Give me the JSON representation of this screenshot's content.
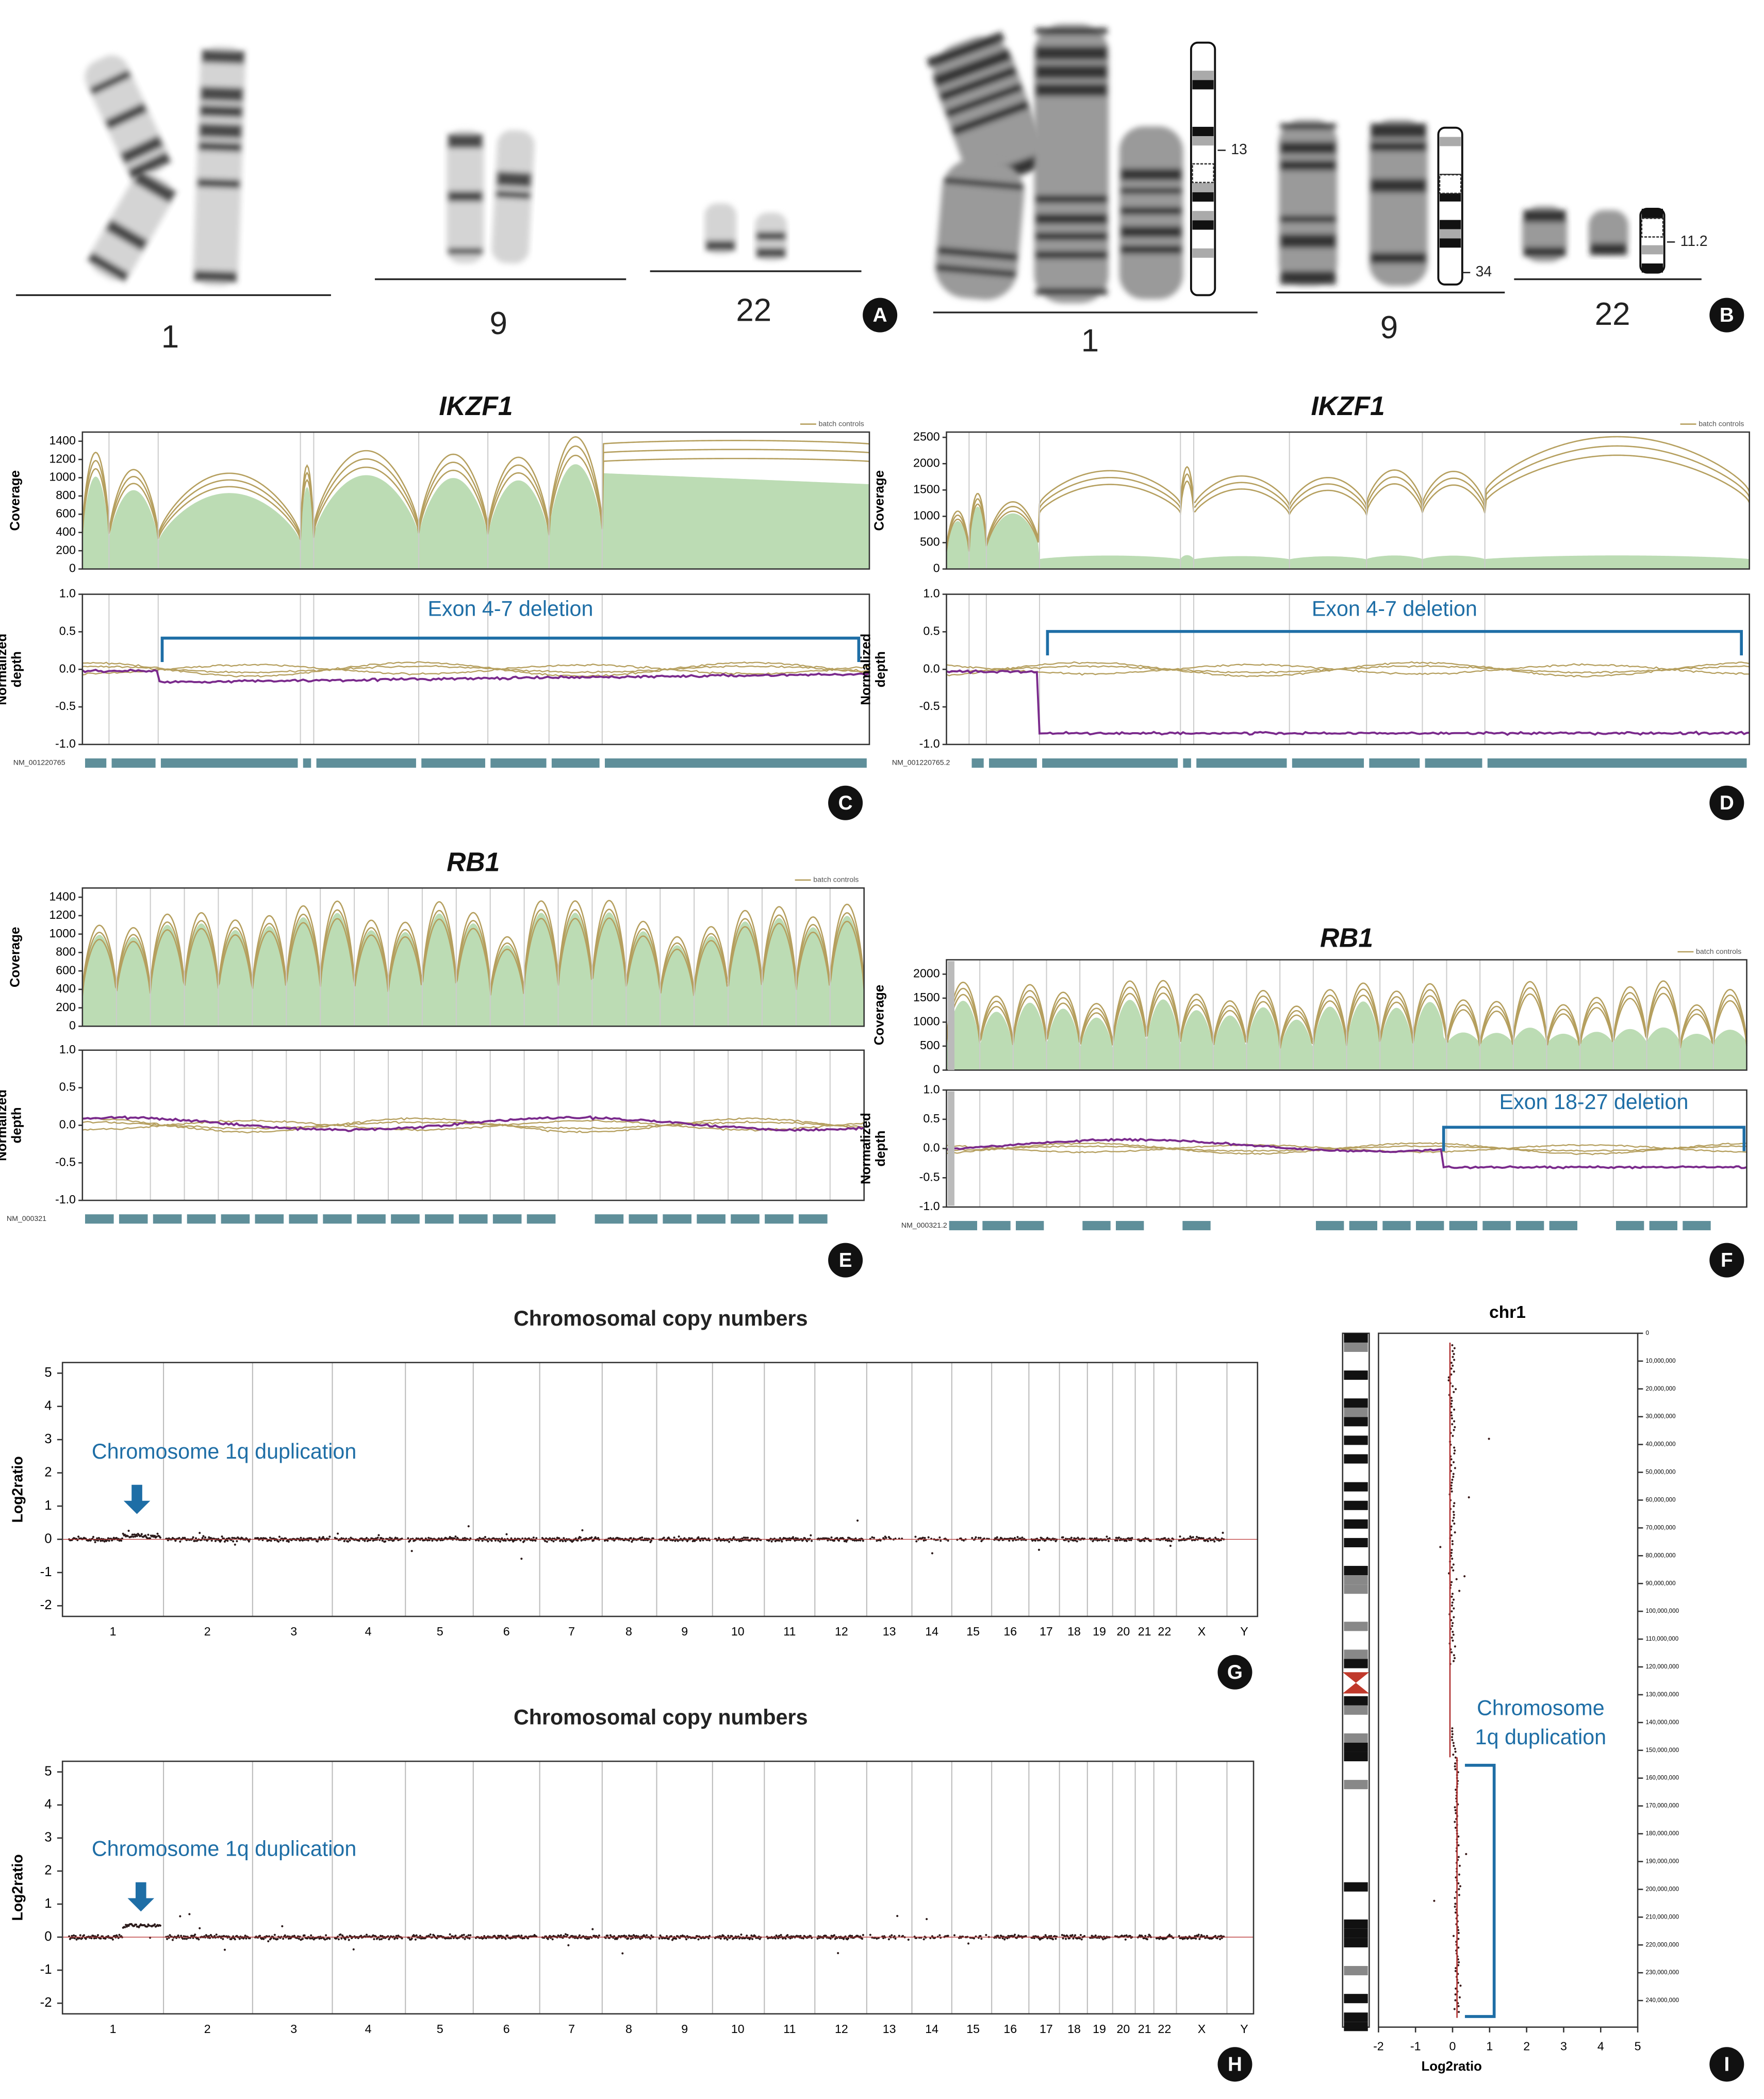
{
  "panels": {
    "A": {
      "label": "A",
      "chromosomes": [
        "1",
        "9",
        "22"
      ]
    },
    "B": {
      "label": "B",
      "chromosomes": [
        "1",
        "9",
        "22"
      ],
      "bands": [
        "13",
        "34",
        "11.2"
      ]
    },
    "C": {
      "label": "C",
      "title": "IKZF1",
      "legend": "batch controls",
      "coverage_axis": "Coverage",
      "depth_axis": [
        "Normalized",
        "depth"
      ],
      "coverage_ticks": [
        "1400",
        "1200",
        "1000",
        "800",
        "600",
        "400",
        "200",
        "0"
      ],
      "depth_ticks": [
        "1.0",
        "0.5",
        "0.0",
        "-0.5",
        "-1.0"
      ],
      "annotation": "Exon 4-7 deletion",
      "transcript": "NM_001220765"
    },
    "D": {
      "label": "D",
      "title": "IKZF1",
      "legend": "batch controls",
      "coverage_axis": "Coverage",
      "depth_axis": [
        "Normalized",
        "depth"
      ],
      "coverage_ticks": [
        "2500",
        "2000",
        "1500",
        "1000",
        "500",
        "0"
      ],
      "depth_ticks": [
        "1.0",
        "0.5",
        "0.0",
        "-0.5",
        "-1.0"
      ],
      "annotation": "Exon 4-7 deletion",
      "transcript": "NM_001220765.2"
    },
    "E": {
      "label": "E",
      "title": "RB1",
      "legend": "batch controls",
      "coverage_axis": "Coverage",
      "depth_axis": [
        "Normalized",
        "depth"
      ],
      "coverage_ticks": [
        "1400",
        "1200",
        "1000",
        "800",
        "600",
        "400",
        "200",
        "0"
      ],
      "depth_ticks": [
        "1.0",
        "0.5",
        "0.0",
        "-0.5",
        "-1.0"
      ],
      "transcript": "NM_000321"
    },
    "F": {
      "label": "F",
      "title": "RB1",
      "legend": "batch controls",
      "coverage_axis": "Coverage",
      "depth_axis": [
        "Normalized",
        "depth"
      ],
      "coverage_ticks": [
        "2000",
        "1500",
        "1000",
        "500",
        "0"
      ],
      "depth_ticks": [
        "1.0",
        "0.5",
        "0.0",
        "-0.5",
        "-1.0"
      ],
      "annotation": "Exon 18-27 deletion",
      "transcript": "NM_000321.2"
    },
    "G": {
      "label": "G",
      "title": "Chromosomal copy numbers",
      "y_axis": "Log2ratio",
      "y_ticks": [
        "5",
        "4",
        "3",
        "2",
        "1",
        "0",
        "-1",
        "-2"
      ],
      "annotation": "Chromosome 1q duplication",
      "chromosomes": [
        "1",
        "2",
        "3",
        "4",
        "5",
        "6",
        "7",
        "8",
        "9",
        "10",
        "11",
        "12",
        "13",
        "14",
        "15",
        "16",
        "17",
        "18",
        "19",
        "20",
        "21",
        "22",
        "X",
        "Y"
      ]
    },
    "H": {
      "label": "H",
      "title": "Chromosomal copy numbers",
      "y_axis": "Log2ratio",
      "y_ticks": [
        "5",
        "4",
        "3",
        "2",
        "1",
        "0",
        "-1",
        "-2"
      ],
      "annotation": "Chromosome 1q duplication",
      "chromosomes": [
        "1",
        "2",
        "3",
        "4",
        "5",
        "6",
        "7",
        "8",
        "9",
        "10",
        "11",
        "12",
        "13",
        "14",
        "15",
        "16",
        "17",
        "18",
        "19",
        "20",
        "21",
        "22",
        "X",
        "Y"
      ]
    },
    "I": {
      "label": "I",
      "title": "chr1",
      "x_axis": "Log2ratio",
      "x_ticks": [
        "-2",
        "-1",
        "0",
        "1",
        "2",
        "3",
        "4",
        "5"
      ],
      "positions": [
        "0",
        "10,000,000",
        "20,000,000",
        "30,000,000",
        "40,000,000",
        "50,000,000",
        "60,000,000",
        "70,000,000",
        "80,000,000",
        "90,000,000",
        "100,000,000",
        "110,000,000",
        "120,000,000",
        "130,000,000",
        "140,000,000",
        "150,000,000",
        "160,000,000",
        "170,000,000",
        "180,000,000",
        "190,000,000",
        "200,000,000",
        "210,000,000",
        "220,000,000",
        "230,000,000",
        "240,000,000"
      ],
      "annotation": [
        "Chromosome",
        "1q duplication"
      ]
    }
  }
}
